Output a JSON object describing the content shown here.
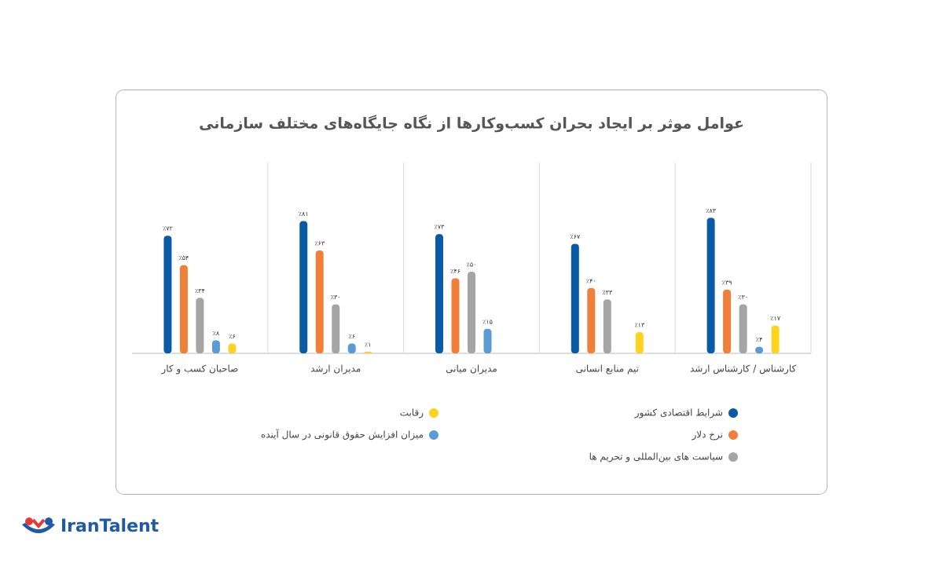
{
  "chart_data": {
    "type": "bar",
    "title": "عوامل موثر بر ایجاد بحران کسب‌وکارها از نگاه جایگاه‌های مختلف سازمانی",
    "categories": [
      "کارشناس / کارشناس ارشد",
      "تیم منابع انسانی",
      "مدیران میانی",
      "مدیران ارشد",
      "صاحبان کسب و کار"
    ],
    "ylim": [
      0,
      100
    ],
    "series": [
      {
        "name": "شرایط اقتصادی کشور",
        "color": "#0b5aa6",
        "values": [
          83,
          67,
          73,
          81,
          72
        ],
        "value_labels": [
          "٪۸۳",
          "٪۶۷",
          "٪۷۳",
          "٪۸۱",
          "٪۷۲"
        ]
      },
      {
        "name": "نرخ دلار",
        "color": "#f07f3a",
        "values": [
          39,
          40,
          46,
          63,
          54
        ],
        "value_labels": [
          "٪۳۹",
          "٪۴۰",
          "٪۴۶",
          "٪۶۳",
          "٪۵۴"
        ]
      },
      {
        "name": "سیاست های بین‌المللی و تحریم ها",
        "color": "#a5a5a5",
        "values": [
          30,
          33,
          50,
          30,
          34
        ],
        "value_labels": [
          "٪۳۰",
          "٪۳۳",
          "٪۵۰",
          "٪۳۰",
          "٪۳۴"
        ]
      },
      {
        "name": "میزان افزایش حقوق قانونی در سال آینده",
        "color": "#5b9bd5",
        "values": [
          4,
          null,
          15,
          6,
          8
        ],
        "value_labels": [
          "٪۴",
          null,
          "٪۱۵",
          "٪۶",
          "٪۸"
        ]
      },
      {
        "name": "رقابت",
        "color": "#ffd21f",
        "values": [
          17,
          13,
          null,
          1,
          6
        ],
        "value_labels": [
          "٪۱۷",
          "٪۱۳",
          null,
          "٪۱",
          "٪۶"
        ]
      }
    ]
  },
  "logo": {
    "text": "IranTalent"
  }
}
